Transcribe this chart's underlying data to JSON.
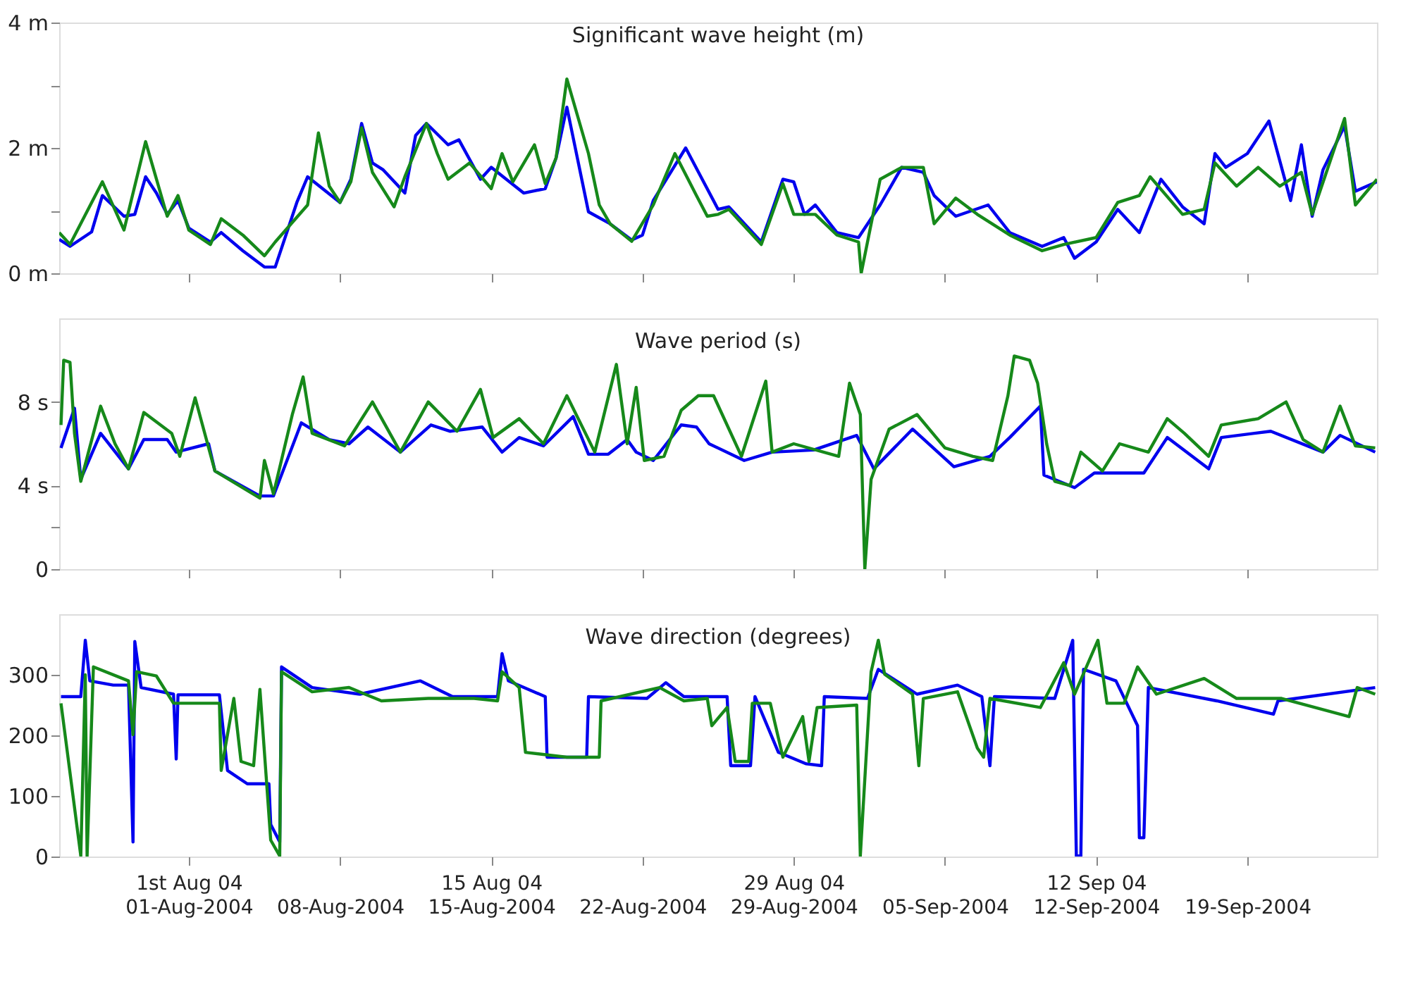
{
  "chart_data": [
    {
      "type": "line",
      "title": "Significant wave height (m)",
      "tick_labels": "y",
      "xlim": [
        "2004-07-26T00:00",
        "2004-09-25T00:00"
      ],
      "xticks": [
        {
          "value": "2004-08-01T00:00",
          "label": null
        },
        {
          "value": "2004-08-08T00:00",
          "label": null
        },
        {
          "value": "2004-08-15T00:00",
          "label": null
        },
        {
          "value": "2004-08-22T00:00",
          "label": null
        },
        {
          "value": "2004-08-29T00:00",
          "label": null
        },
        {
          "value": "2004-09-05T00:00",
          "label": null
        },
        {
          "value": "2004-09-12T00:00",
          "label": null
        },
        {
          "value": "2004-09-19T00:00",
          "label": null
        }
      ],
      "ylim": [
        0,
        4
      ],
      "yticks": [
        {
          "value": 0,
          "label": "0 m"
        },
        {
          "value": 1,
          "label": null
        },
        {
          "value": 2,
          "label": "2 m"
        },
        {
          "value": 3,
          "label": null
        },
        {
          "value": 4,
          "label": "4 m"
        }
      ],
      "series": [
        {
          "color": "#0000ee",
          "x": [
            "2004-07-26T00:00",
            "2004-07-26T12:00",
            "2004-07-27T12:00",
            "2004-07-28T00:00",
            "2004-07-29T00:00",
            "2004-07-29T12:00",
            "2004-07-30T00:00",
            "2004-07-30T12:00",
            "2004-07-31T00:00",
            "2004-07-31T12:00",
            "2004-08-01T00:00",
            "2004-08-02T00:00",
            "2004-08-02T12:00",
            "2004-08-03T12:00",
            "2004-08-04T12:00",
            "2004-08-05T00:00",
            "2004-08-06T00:00",
            "2004-08-06T12:00",
            "2004-08-08T00:00",
            "2004-08-08T12:00",
            "2004-08-09T00:00",
            "2004-08-09T12:00",
            "2004-08-10T00:00",
            "2004-08-11T00:00",
            "2004-08-11T12:00",
            "2004-08-12T00:00",
            "2004-08-13T00:00",
            "2004-08-13T12:00",
            "2004-08-14T12:00",
            "2004-08-15T00:00",
            "2004-08-16T12:00",
            "2004-08-17T12:00",
            "2004-08-18T00:00",
            "2004-08-18T12:00",
            "2004-08-19T12:00",
            "2004-08-20T12:00",
            "2004-08-21T12:00",
            "2004-08-22T00:00",
            "2004-08-22T12:00",
            "2004-08-24T00:00",
            "2004-08-25T12:00",
            "2004-08-26T00:00",
            "2004-08-27T12:00",
            "2004-08-28T12:00",
            "2004-08-29T00:00",
            "2004-08-29T12:00",
            "2004-08-30T00:00",
            "2004-08-31T00:00",
            "2004-09-01T00:00",
            "2004-09-02T00:00",
            "2004-09-03T00:00",
            "2004-09-04T00:00",
            "2004-09-04T12:00",
            "2004-09-05T12:00",
            "2004-09-07T00:00",
            "2004-09-08T00:00",
            "2004-09-09T12:00",
            "2004-09-10T12:00",
            "2004-09-11T00:00",
            "2004-09-12T00:00",
            "2004-09-13T00:00",
            "2004-09-14T00:00",
            "2004-09-15T00:00",
            "2004-09-16T00:00",
            "2004-09-17T00:00",
            "2004-09-17T12:00",
            "2004-09-18T00:00",
            "2004-09-19T00:00",
            "2004-09-20T00:00",
            "2004-09-21T00:00",
            "2004-09-21T12:00",
            "2004-09-22T00:00",
            "2004-09-22T12:00",
            "2004-09-23T12:00",
            "2004-09-24T00:00",
            "2004-09-25T00:00"
          ],
          "values": [
            0.54,
            0.43,
            0.66,
            1.24,
            0.91,
            0.94,
            1.54,
            1.28,
            0.94,
            1.16,
            0.72,
            0.5,
            0.65,
            0.36,
            0.1,
            0.1,
            1.13,
            1.54,
            1.13,
            1.5,
            2.39,
            1.76,
            1.65,
            1.28,
            2.2,
            2.39,
            2.05,
            2.13,
            1.5,
            1.69,
            1.28,
            1.35,
            1.84,
            2.65,
            0.98,
            0.79,
            0.53,
            0.61,
            1.16,
            2.0,
            1.02,
            1.06,
            0.5,
            1.5,
            1.46,
            0.94,
            1.09,
            0.65,
            0.57,
            1.09,
            1.69,
            1.61,
            1.24,
            0.91,
            1.09,
            0.65,
            0.43,
            0.57,
            0.24,
            0.5,
            1.02,
            0.65,
            1.5,
            1.06,
            0.79,
            1.91,
            1.69,
            1.91,
            2.43,
            1.16,
            2.05,
            0.91,
            1.65,
            2.35,
            1.31,
            1.46
          ]
        },
        {
          "color": "#16891a",
          "x": [
            "2004-07-26T00:00",
            "2004-07-26T12:00",
            "2004-07-28T00:00",
            "2004-07-29T00:00",
            "2004-07-30T00:00",
            "2004-07-31T00:00",
            "2004-07-31T12:00",
            "2004-08-01T00:00",
            "2004-08-02T00:00",
            "2004-08-02T12:00",
            "2004-08-03T12:00",
            "2004-08-04T12:00",
            "2004-08-05T00:00",
            "2004-08-06T12:00",
            "2004-08-07T00:00",
            "2004-08-07T12:00",
            "2004-08-08T00:00",
            "2004-08-08T12:00",
            "2004-08-09T00:00",
            "2004-08-09T12:00",
            "2004-08-10T12:00",
            "2004-08-11T00:00",
            "2004-08-12T00:00",
            "2004-08-12T12:00",
            "2004-08-13T00:00",
            "2004-08-14T00:00",
            "2004-08-15T00:00",
            "2004-08-15T12:00",
            "2004-08-16T00:00",
            "2004-08-17T00:00",
            "2004-08-17T12:00",
            "2004-08-18T00:00",
            "2004-08-18T12:00",
            "2004-08-19T12:00",
            "2004-08-20T00:00",
            "2004-08-20T12:00",
            "2004-08-21T12:00",
            "2004-08-22T12:00",
            "2004-08-23T12:00",
            "2004-08-24T12:00",
            "2004-08-25T00:00",
            "2004-08-25T12:00",
            "2004-08-26T00:00",
            "2004-08-27T12:00",
            "2004-08-28T12:00",
            "2004-08-29T00:00",
            "2004-08-30T00:00",
            "2004-08-31T00:00",
            "2004-09-01T00:00",
            "2004-09-01T03:00",
            "2004-09-02T00:00",
            "2004-09-03T00:00",
            "2004-09-04T00:00",
            "2004-09-04T12:00",
            "2004-09-05T12:00",
            "2004-09-06T12:00",
            "2004-09-08T00:00",
            "2004-09-09T12:00",
            "2004-09-10T12:00",
            "2004-09-12T00:00",
            "2004-09-13T00:00",
            "2004-09-14T00:00",
            "2004-09-14T12:00",
            "2004-09-16T00:00",
            "2004-09-17T00:00",
            "2004-09-17T12:00",
            "2004-09-18T12:00",
            "2004-09-19T12:00",
            "2004-09-20T12:00",
            "2004-09-21T12:00",
            "2004-09-22T00:00",
            "2004-09-23T12:00",
            "2004-09-24T00:00",
            "2004-09-25T00:00"
          ],
          "values": [
            0.65,
            0.46,
            1.46,
            0.69,
            2.1,
            0.91,
            1.24,
            0.69,
            0.46,
            0.87,
            0.61,
            0.28,
            0.5,
            1.09,
            2.24,
            1.39,
            1.13,
            1.46,
            2.32,
            1.61,
            1.06,
            1.54,
            2.39,
            1.91,
            1.5,
            1.76,
            1.35,
            1.91,
            1.46,
            2.05,
            1.43,
            1.84,
            3.1,
            1.91,
            1.09,
            0.79,
            0.51,
            1.09,
            1.91,
            1.24,
            0.91,
            0.94,
            1.02,
            0.46,
            1.43,
            0.94,
            0.94,
            0.61,
            0.5,
            0.0,
            1.5,
            1.69,
            1.69,
            0.79,
            1.2,
            0.94,
            0.61,
            0.36,
            0.46,
            0.57,
            1.13,
            1.24,
            1.54,
            0.94,
            1.02,
            1.76,
            1.39,
            1.69,
            1.39,
            1.61,
            0.94,
            2.47,
            1.09,
            1.5
          ]
        }
      ]
    },
    {
      "type": "line",
      "title": "Wave period (s)",
      "tick_labels": "y",
      "xlim": [
        "2004-07-26T00:00",
        "2004-09-25T00:00"
      ],
      "xticks": [
        {
          "value": "2004-08-01T00:00",
          "label": null
        },
        {
          "value": "2004-08-08T00:00",
          "label": null
        },
        {
          "value": "2004-08-15T00:00",
          "label": null
        },
        {
          "value": "2004-08-22T00:00",
          "label": null
        },
        {
          "value": "2004-08-29T00:00",
          "label": null
        },
        {
          "value": "2004-09-05T00:00",
          "label": null
        },
        {
          "value": "2004-09-12T00:00",
          "label": null
        },
        {
          "value": "2004-09-19T00:00",
          "label": null
        }
      ],
      "ylim": [
        0,
        12
      ],
      "yticks": [
        0,
        {
          "value": 2,
          "label": null
        },
        {
          "value": 4,
          "label": "4 s"
        },
        {
          "value": 8,
          "label": "8 s"
        }
      ],
      "series": [
        {
          "color": "#0000ee",
          "x": [
            "2004-07-26T02:00",
            "2004-07-26T17:00",
            "2004-07-27T00:00",
            "2004-07-27T22:00",
            "2004-07-29T05:00",
            "2004-07-29T22:00",
            "2004-07-31T00:00",
            "2004-07-31T10:00",
            "2004-08-01T22:00",
            "2004-08-02T05:00",
            "2004-08-04T07:00",
            "2004-08-04T22:00",
            "2004-08-06T05:00",
            "2004-08-07T12:00",
            "2004-08-08T10:00",
            "2004-08-09T07:00",
            "2004-08-10T19:00",
            "2004-08-12T05:00",
            "2004-08-13T02:00",
            "2004-08-14T14:00",
            "2004-08-15T12:00",
            "2004-08-16T07:00",
            "2004-08-17T10:00",
            "2004-08-18T19:00",
            "2004-08-19T12:00",
            "2004-08-20T10:00",
            "2004-08-21T07:00",
            "2004-08-21T17:00",
            "2004-08-22T12:00",
            "2004-08-23T19:00",
            "2004-08-24T12:00",
            "2004-08-25T02:00",
            "2004-08-26T17:00",
            "2004-08-28T00:00",
            "2004-08-29T22:00",
            "2004-08-31T22:00",
            "2004-09-01T17:00",
            "2004-09-03T12:00",
            "2004-09-05T10:00",
            "2004-09-07T02:00",
            "2004-09-08T00:00",
            "2004-09-09T10:00",
            "2004-09-09T14:00",
            "2004-09-11T00:00",
            "2004-09-11T22:00",
            "2004-09-14T05:00",
            "2004-09-15T07:00",
            "2004-09-17T05:00",
            "2004-09-17T19:00",
            "2004-09-20T02:00",
            "2004-09-22T12:00",
            "2004-09-23T07:00",
            "2004-09-24T22:00"
          ],
          "values": [
            5.8,
            7.7,
            4.3,
            6.5,
            4.8,
            6.2,
            6.2,
            5.6,
            6.0,
            4.7,
            3.5,
            3.5,
            7.0,
            6.2,
            6.0,
            6.8,
            5.6,
            6.9,
            6.6,
            6.8,
            5.6,
            6.3,
            5.9,
            7.3,
            5.5,
            5.5,
            6.2,
            5.6,
            5.2,
            6.9,
            6.8,
            6.0,
            5.2,
            5.6,
            5.7,
            6.4,
            4.8,
            6.7,
            4.9,
            5.4,
            6.3,
            7.8,
            4.5,
            3.9,
            4.6,
            4.6,
            6.3,
            4.8,
            6.3,
            6.6,
            5.6,
            6.4,
            5.6
          ]
        },
        {
          "color": "#16891a",
          "x": [
            "2004-07-26T02:00",
            "2004-07-26T05:00",
            "2004-07-26T12:00",
            "2004-07-26T17:00",
            "2004-07-27T00:00",
            "2004-07-27T22:00",
            "2004-07-28T14:00",
            "2004-07-29T05:00",
            "2004-07-29T22:00",
            "2004-07-31T05:00",
            "2004-07-31T14:00",
            "2004-08-01T07:00",
            "2004-08-02T05:00",
            "2004-08-04T07:00",
            "2004-08-04T12:00",
            "2004-08-04T22:00",
            "2004-08-05T19:00",
            "2004-08-06T07:00",
            "2004-08-06T17:00",
            "2004-08-08T05:00",
            "2004-08-09T12:00",
            "2004-08-10T19:00",
            "2004-08-12T02:00",
            "2004-08-13T10:00",
            "2004-08-14T12:00",
            "2004-08-15T02:00",
            "2004-08-16T07:00",
            "2004-08-17T10:00",
            "2004-08-18T12:00",
            "2004-08-19T19:00",
            "2004-08-20T19:00",
            "2004-08-21T07:00",
            "2004-08-21T17:00",
            "2004-08-22T02:00",
            "2004-08-23T00:00",
            "2004-08-23T19:00",
            "2004-08-24T14:00",
            "2004-08-25T07:00",
            "2004-08-26T14:00",
            "2004-08-27T17:00",
            "2004-08-28T00:00",
            "2004-08-29T00:00",
            "2004-08-31T02:00",
            "2004-08-31T14:00",
            "2004-09-01T02:00",
            "2004-09-01T07:00",
            "2004-09-01T14:00",
            "2004-09-02T10:00",
            "2004-09-03T17:00",
            "2004-09-05T00:00",
            "2004-09-06T07:00",
            "2004-09-07T05:00",
            "2004-09-07T22:00",
            "2004-09-08T05:00",
            "2004-09-08T22:00",
            "2004-09-09T07:00",
            "2004-09-09T17:00",
            "2004-09-10T02:00",
            "2004-09-10T19:00",
            "2004-09-11T07:00",
            "2004-09-12T07:00",
            "2004-09-13T02:00",
            "2004-09-14T10:00",
            "2004-09-15T07:00",
            "2004-09-16T02:00",
            "2004-09-17T05:00",
            "2004-09-17T19:00",
            "2004-09-19T12:00",
            "2004-09-20T19:00",
            "2004-09-21T14:00",
            "2004-09-22T12:00",
            "2004-09-23T07:00",
            "2004-09-24T00:00",
            "2004-09-24T22:00"
          ],
          "values": [
            6.9,
            10.0,
            9.9,
            6.5,
            4.2,
            7.8,
            6.0,
            4.8,
            7.5,
            6.5,
            5.4,
            8.2,
            4.7,
            3.4,
            5.2,
            3.6,
            7.4,
            9.2,
            6.5,
            5.9,
            8.0,
            5.6,
            8.0,
            6.6,
            8.6,
            6.3,
            7.2,
            6.0,
            8.3,
            5.6,
            9.8,
            6.0,
            8.7,
            5.2,
            5.4,
            7.6,
            8.3,
            8.3,
            5.4,
            9.0,
            5.6,
            6.0,
            5.4,
            8.9,
            7.4,
            0.0,
            4.3,
            6.7,
            7.4,
            5.8,
            5.4,
            5.2,
            8.3,
            10.2,
            10.0,
            8.9,
            6.0,
            4.2,
            4.0,
            5.6,
            4.7,
            6.0,
            5.6,
            7.2,
            6.5,
            5.4,
            6.9,
            7.2,
            8.0,
            6.2,
            5.6,
            7.8,
            5.9,
            5.8
          ]
        }
      ]
    },
    {
      "type": "line",
      "title": "Wave direction (degrees)",
      "xlim": [
        "2004-07-26T00:00",
        "2004-09-25T00:00"
      ],
      "xticks": [
        {
          "value": "2004-08-01T00:00",
          "label": "1st Aug 04"
        },
        {
          "value": "2004-08-08T00:00",
          "label": null
        },
        {
          "value": "2004-08-15T00:00",
          "label": "15 Aug 04"
        },
        {
          "value": "2004-08-22T00:00",
          "label": null
        },
        {
          "value": "2004-08-29T00:00",
          "label": "29 Aug 04"
        },
        {
          "value": "2004-09-05T00:00",
          "label": null
        },
        {
          "value": "2004-09-12T00:00",
          "label": "12 Sep 04"
        },
        {
          "value": "2004-09-19T00:00",
          "label": null
        }
      ],
      "x2lim": [
        "2004-07-26T00:00",
        "2004-09-25T00:00"
      ],
      "x2ticks": [
        {
          "value": "2004-08-01T00:00",
          "label": "01-Aug-2004"
        },
        {
          "value": "2004-08-08T00:00",
          "label": "08-Aug-2004"
        },
        {
          "value": "2004-08-15T00:00",
          "label": "15-Aug-2004"
        },
        {
          "value": "2004-08-22T00:00",
          "label": "22-Aug-2004"
        },
        {
          "value": "2004-08-29T00:00",
          "label": "29-Aug-2004"
        },
        {
          "value": "2004-09-05T00:00",
          "label": "05-Sep-2004"
        },
        {
          "value": "2004-09-12T00:00",
          "label": "12-Sep-2004"
        },
        {
          "value": "2004-09-19T00:00",
          "label": "19-Sep-2004"
        }
      ],
      "ylim": [
        0,
        400
      ],
      "yticks": [
        0,
        100,
        200,
        300
      ],
      "series": [
        {
          "color": "#0000ee",
          "x": [
            "2004-07-26T02:00",
            "2004-07-27T00:00",
            "2004-07-27T05:00",
            "2004-07-27T10:00",
            "2004-07-28T12:00",
            "2004-07-29T05:00",
            "2004-07-29T10:00",
            "2004-07-29T12:00",
            "2004-07-29T19:00",
            "2004-07-31T07:00",
            "2004-07-31T10:00",
            "2004-07-31T12:00",
            "2004-08-02T10:00",
            "2004-08-02T19:00",
            "2004-08-03T17:00",
            "2004-08-04T17:00",
            "2004-08-04T19:00",
            "2004-08-05T05:00",
            "2004-08-05T07:00",
            "2004-08-06T17:00",
            "2004-08-08T22:00",
            "2004-08-11T17:00",
            "2004-08-13T05:00",
            "2004-08-15T07:00",
            "2004-08-15T12:00",
            "2004-08-15T19:00",
            "2004-08-17T12:00",
            "2004-08-17T14:00",
            "2004-08-19T10:00",
            "2004-08-19T12:00",
            "2004-08-22T05:00",
            "2004-08-23T02:00",
            "2004-08-23T22:00",
            "2004-08-25T22:00",
            "2004-08-26T02:00",
            "2004-08-27T00:00",
            "2004-08-27T05:00",
            "2004-08-28T07:00",
            "2004-08-29T14:00",
            "2004-08-30T07:00",
            "2004-08-30T10:00",
            "2004-09-01T10:00",
            "2004-09-01T22:00",
            "2004-09-03T17:00",
            "2004-09-05T14:00",
            "2004-09-06T17:00",
            "2004-09-07T02:00",
            "2004-09-07T07:00",
            "2004-09-10T02:00",
            "2004-09-10T22:00",
            "2004-09-11T02:00",
            "2004-09-11T07:00",
            "2004-09-11T10:00",
            "2004-09-12T22:00",
            "2004-09-13T22:00",
            "2004-09-14T00:00",
            "2004-09-14T05:00",
            "2004-09-14T10:00",
            "2004-09-17T14:00",
            "2004-09-20T05:00",
            "2004-09-20T10:00",
            "2004-09-24T22:00"
          ],
          "values": [
            264,
            264,
            357,
            290,
            283,
            283,
            24,
            355,
            279,
            268,
            161,
            267,
            267,
            142,
            120,
            120,
            53,
            24,
            313,
            279,
            268,
            290,
            264,
            264,
            335,
            290,
            264,
            164,
            164,
            264,
            261,
            287,
            264,
            264,
            150,
            150,
            264,
            172,
            153,
            150,
            264,
            261,
            309,
            268,
            283,
            264,
            150,
            264,
            261,
            357,
            1,
            1,
            309,
            290,
            216,
            31,
            31,
            279,
            257,
            235,
            257,
            279
          ]
        },
        {
          "color": "#16891a",
          "x": [
            "2004-07-26T02:00",
            "2004-07-27T00:00",
            "2004-07-27T05:00",
            "2004-07-27T07:00",
            "2004-07-27T14:00",
            "2004-07-29T05:00",
            "2004-07-29T10:00",
            "2004-07-29T14:00",
            "2004-07-30T12:00",
            "2004-07-31T07:00",
            "2004-08-02T10:00",
            "2004-08-02T12:00",
            "2004-08-03T02:00",
            "2004-08-03T10:00",
            "2004-08-04T00:00",
            "2004-08-04T07:00",
            "2004-08-04T19:00",
            "2004-08-05T05:00",
            "2004-08-05T07:00",
            "2004-08-06T17:00",
            "2004-08-08T10:00",
            "2004-08-09T22:00",
            "2004-08-12T02:00",
            "2004-08-14T05:00",
            "2004-08-15T07:00",
            "2004-08-15T12:00",
            "2004-08-16T07:00",
            "2004-08-16T14:00",
            "2004-08-18T12:00",
            "2004-08-20T00:00",
            "2004-08-20T02:00",
            "2004-08-22T19:00",
            "2004-08-23T22:00",
            "2004-08-25T00:00",
            "2004-08-25T05:00",
            "2004-08-25T22:00",
            "2004-08-26T07:00",
            "2004-08-26T22:00",
            "2004-08-27T02:00",
            "2004-08-27T22:00",
            "2004-08-28T12:00",
            "2004-08-29T10:00",
            "2004-08-29T17:00",
            "2004-08-30T02:00",
            "2004-08-31T22:00",
            "2004-09-01T02:00",
            "2004-09-01T14:00",
            "2004-09-01T22:00",
            "2004-09-02T05:00",
            "2004-09-03T12:00",
            "2004-09-03T19:00",
            "2004-09-04T00:00",
            "2004-09-05T14:00",
            "2004-09-06T12:00",
            "2004-09-06T19:00",
            "2004-09-07T02:00",
            "2004-09-09T10:00",
            "2004-09-10T12:00",
            "2004-09-11T00:00",
            "2004-09-12T02:00",
            "2004-09-12T12:00",
            "2004-09-13T07:00",
            "2004-09-13T22:00",
            "2004-09-14T19:00",
            "2004-09-17T00:00",
            "2004-09-18T12:00",
            "2004-09-20T14:00",
            "2004-09-23T17:00",
            "2004-09-24T02:00",
            "2004-09-24T22:00"
          ],
          "values": [
            253,
            1,
            300,
            1,
            313,
            290,
            201,
            305,
            298,
            253,
            253,
            142,
            261,
            157,
            150,
            276,
            27,
            1,
            305,
            272,
            279,
            257,
            261,
            261,
            257,
            305,
            279,
            172,
            164,
            164,
            257,
            279,
            257,
            261,
            216,
            246,
            157,
            157,
            253,
            253,
            164,
            231,
            157,
            246,
            250,
            1,
            305,
            357,
            301,
            268,
            150,
            261,
            272,
            179,
            164,
            261,
            246,
            320,
            268,
            357,
            253,
            253,
            313,
            268,
            294,
            261,
            261,
            231,
            279,
            268
          ]
        }
      ]
    }
  ]
}
